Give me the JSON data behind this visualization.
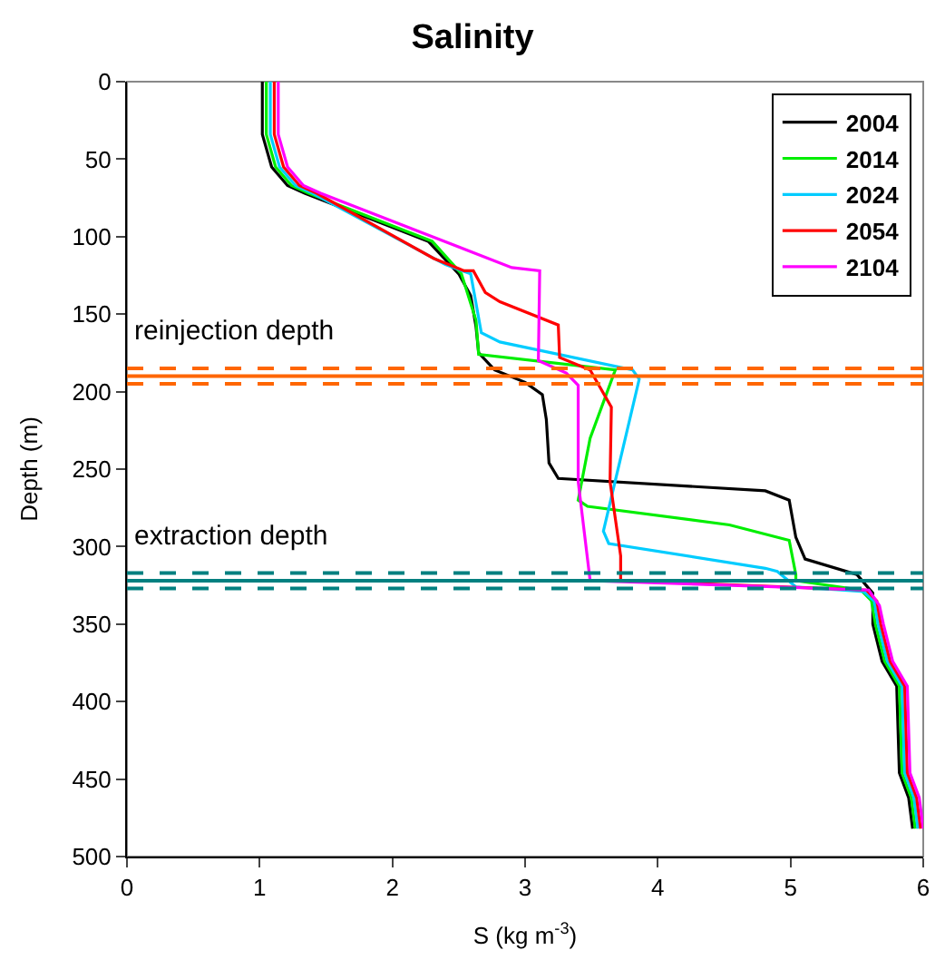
{
  "chart_data": {
    "type": "line",
    "title": "Salinity",
    "xlabel": "S (kg m$^{-3}$)",
    "ylabel": "Depth (m)",
    "xlim": [
      0,
      6
    ],
    "xticks": [
      0,
      1,
      2,
      3,
      4,
      5,
      6
    ],
    "ylim": [
      500,
      0
    ],
    "yticks": [
      0,
      50,
      100,
      150,
      200,
      250,
      300,
      350,
      400,
      450,
      500
    ],
    "grid": false,
    "legend": "top right",
    "marker": "none",
    "line_style": "solid",
    "series": [
      {
        "name": "2004",
        "color": "#000000",
        "x": [
          1.02,
          1.02,
          1.09,
          1.21,
          1.34,
          2.27,
          2.5,
          2.59,
          2.63,
          2.65,
          2.77,
          3.0,
          3.13,
          3.16,
          3.18,
          3.25,
          4.81,
          4.99,
          5.04,
          5.11,
          5.5,
          5.62,
          5.62,
          5.69,
          5.8,
          5.82,
          5.89,
          5.92
        ],
        "values": [
          0,
          34,
          55,
          67,
          72,
          103,
          124,
          138,
          158,
          175,
          186,
          194,
          202,
          218,
          246,
          256,
          264,
          270,
          294,
          308,
          318,
          330,
          350,
          374,
          390,
          446,
          462,
          482
        ]
      },
      {
        "name": "2014",
        "color": "#00ee00",
        "x": [
          1.05,
          1.05,
          1.12,
          1.24,
          1.37,
          2.3,
          2.52,
          2.63,
          2.65,
          3.68,
          3.49,
          3.4,
          3.47,
          4.54,
          4.99,
          5.04,
          5.04,
          5.53,
          5.61,
          5.64,
          5.71,
          5.82,
          5.84,
          5.91,
          5.94
        ],
        "values": [
          0,
          34,
          55,
          67,
          72,
          103,
          124,
          154,
          176,
          186,
          230,
          270,
          274,
          286,
          296,
          318,
          322,
          328,
          335,
          350,
          374,
          390,
          446,
          462,
          482
        ]
      },
      {
        "name": "2024",
        "color": "#00ccff",
        "x": [
          1.08,
          1.08,
          1.15,
          1.27,
          1.4,
          2.4,
          2.59,
          2.67,
          2.81,
          3.81,
          3.86,
          3.59,
          3.63,
          4.81,
          4.9,
          5.04,
          5.55,
          5.63,
          5.66,
          5.73,
          5.84,
          5.86,
          5.93,
          5.96
        ],
        "values": [
          0,
          34,
          55,
          67,
          72,
          118,
          124,
          162,
          168,
          186,
          192,
          290,
          298,
          314,
          316,
          326,
          329,
          335,
          350,
          374,
          390,
          446,
          462,
          482
        ]
      },
      {
        "name": "2054",
        "color": "#ff0000",
        "x": [
          1.11,
          1.11,
          1.18,
          1.3,
          1.43,
          2.31,
          2.54,
          2.61,
          2.7,
          2.81,
          3.25,
          3.26,
          3.49,
          3.65,
          3.64,
          3.72,
          3.72,
          5.57,
          5.65,
          5.68,
          5.75,
          5.86,
          5.88,
          5.95,
          5.98
        ],
        "values": [
          0,
          34,
          55,
          67,
          72,
          114,
          122,
          122,
          136,
          142,
          157,
          178,
          186,
          210,
          258,
          306,
          322,
          328,
          335,
          350,
          374,
          390,
          446,
          462,
          482
        ]
      },
      {
        "name": "2104",
        "color": "#ff00ff",
        "x": [
          1.14,
          1.14,
          1.21,
          1.33,
          1.46,
          2.9,
          3.11,
          3.1,
          3.31,
          3.4,
          3.4,
          3.49,
          5.59,
          5.67,
          5.7,
          5.77,
          5.88,
          5.9,
          5.97,
          6.0
        ],
        "values": [
          0,
          34,
          55,
          67,
          72,
          120,
          122,
          180,
          188,
          196,
          258,
          322,
          328,
          338,
          350,
          374,
          390,
          446,
          462,
          482
        ]
      }
    ],
    "ref_lines": [
      {
        "axis": "y",
        "value": 185,
        "color": "#ff6600",
        "line_style": "dashed"
      },
      {
        "axis": "y",
        "value": 190,
        "label": "reinjection depth",
        "color": "#ff6600",
        "line_style": "solid"
      },
      {
        "axis": "y",
        "value": 195,
        "color": "#ff6600",
        "line_style": "dashed"
      },
      {
        "axis": "y",
        "value": 317,
        "color": "#008080",
        "line_style": "dashed"
      },
      {
        "axis": "y",
        "value": 322,
        "label": "extraction depth",
        "color": "#008080",
        "line_style": "solid"
      },
      {
        "axis": "y",
        "value": 327,
        "color": "#008080",
        "line_style": "dashed"
      }
    ]
  }
}
